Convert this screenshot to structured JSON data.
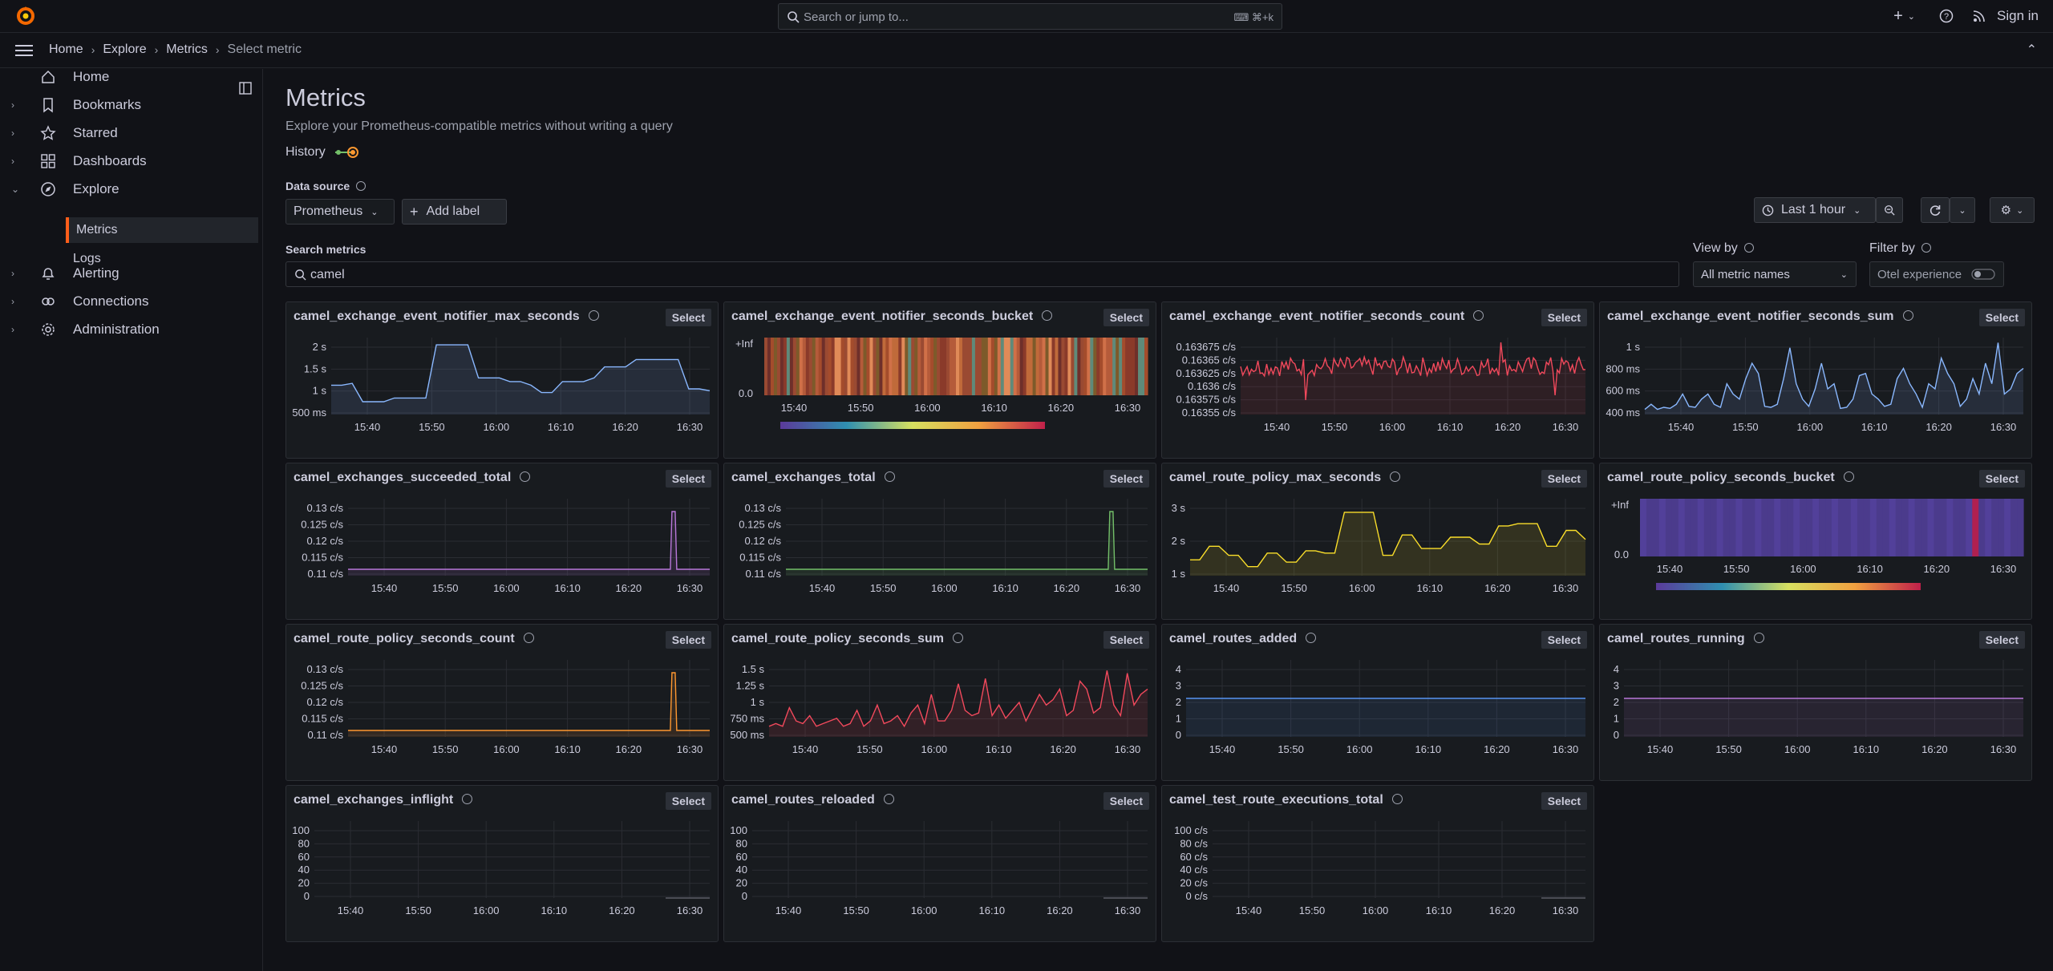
{
  "topbar": {
    "search_placeholder": "Search or jump to...",
    "shortcut": "⌨ ⌘+k",
    "sign_in": "Sign in"
  },
  "breadcrumbs": [
    "Home",
    "Explore",
    "Metrics",
    "Select metric"
  ],
  "nav": [
    {
      "label": "Home",
      "icon": "home-icon",
      "chev": false
    },
    {
      "label": "Bookmarks",
      "icon": "bookmark-icon",
      "chev": true
    },
    {
      "label": "Starred",
      "icon": "star-icon",
      "chev": true
    },
    {
      "label": "Dashboards",
      "icon": "apps-icon",
      "chev": true
    },
    {
      "label": "Explore",
      "icon": "compass-icon",
      "chev": true,
      "open": true
    },
    {
      "label": "Alerting",
      "icon": "bell-icon",
      "chev": true
    },
    {
      "label": "Connections",
      "icon": "link-icon",
      "chev": true
    },
    {
      "label": "Administration",
      "icon": "cog-icon",
      "chev": true
    }
  ],
  "subnav": [
    {
      "label": "Metrics",
      "active": true
    },
    {
      "label": "Logs",
      "active": false
    }
  ],
  "page": {
    "title": "Metrics",
    "subtitle": "Explore your Prometheus-compatible metrics without writing a query",
    "history_label": "History",
    "datasource_label": "Data source",
    "datasource_value": "Prometheus",
    "add_label": "Add label",
    "time_range": "Last 1 hour",
    "search_label": "Search metrics",
    "search_value": "camel",
    "view_by_label": "View by",
    "view_by_value": "All metric names",
    "filter_by_label": "Filter by",
    "otel_label": "Otel experience",
    "select_label": "Select"
  },
  "colors": {
    "accent": "#ff5e1a",
    "blue": "#8ab8ff",
    "red": "#f2495c",
    "purple": "#b877d9",
    "green": "#73bf69",
    "yellow": "#fade2a",
    "orange": "#ff9830"
  },
  "chart_data": [
    {
      "name": "camel_exchange_event_notifier_max_seconds",
      "type": "area",
      "color": "#8ab8ff",
      "yticks": [
        "2 s",
        "1.5 s",
        "1 s",
        "500 ms"
      ],
      "ymin": 0.2,
      "ymax": 2.3,
      "y": [
        1.0,
        1.0,
        1.05,
        0.55,
        0.55,
        0.55,
        0.65,
        0.65,
        0.65,
        0.65,
        2.1,
        2.1,
        2.1,
        2.1,
        1.2,
        1.2,
        1.2,
        1.1,
        1.1,
        1.0,
        0.8,
        0.8,
        1.1,
        1.1,
        1.1,
        1.2,
        1.5,
        1.5,
        1.5,
        1.7,
        1.7,
        1.7,
        1.7,
        1.7,
        0.9,
        0.9,
        0.85
      ]
    },
    {
      "name": "camel_exchange_event_notifier_seconds_bucket",
      "type": "heatmap",
      "yticks": [
        "+Inf",
        "0.0"
      ],
      "legend_min": "0.000",
      "legend_max": "0.001"
    },
    {
      "name": "camel_exchange_event_notifier_seconds_count",
      "type": "line",
      "color": "#f2495c",
      "yticks": [
        "0.163675 c/s",
        "0.16365 c/s",
        "0.163625 c/s",
        "0.1636 c/s",
        "0.163575 c/s",
        "0.16355 c/s"
      ],
      "ymin": 0.16353,
      "ymax": 0.16369,
      "y": "noise"
    },
    {
      "name": "camel_exchange_event_notifier_seconds_sum",
      "type": "area",
      "color": "#8ab8ff",
      "yticks": [
        "1 s",
        "800 ms",
        "600 ms",
        "400 ms"
      ],
      "ymin": 0.3,
      "ymax": 1.05,
      "y": [
        0.35,
        0.4,
        0.35,
        0.37,
        0.36,
        0.4,
        0.5,
        0.38,
        0.37,
        0.45,
        0.5,
        0.4,
        0.37,
        0.6,
        0.5,
        0.45,
        0.65,
        0.8,
        0.7,
        0.38,
        0.37,
        0.4,
        0.65,
        0.95,
        0.6,
        0.45,
        0.38,
        0.55,
        0.8,
        0.55,
        0.6,
        0.36,
        0.37,
        0.45,
        0.68,
        0.7,
        0.5,
        0.45,
        0.38,
        0.4,
        0.65,
        0.75,
        0.6,
        0.5,
        0.37,
        0.6,
        0.55,
        0.85,
        0.7,
        0.6,
        0.38,
        0.45,
        0.65,
        0.5,
        0.8,
        0.6,
        1.0,
        0.5,
        0.55,
        0.7,
        0.75
      ]
    },
    {
      "name": "camel_exchanges_succeeded_total",
      "type": "line",
      "color": "#b877d9",
      "yticks": [
        "0.13 c/s",
        "0.125 c/s",
        "0.12 c/s",
        "0.115 c/s",
        "0.11 c/s"
      ],
      "ymin": 0.108,
      "ymax": 0.132,
      "spike": 0.128
    },
    {
      "name": "camel_exchanges_total",
      "type": "line",
      "color": "#73bf69",
      "yticks": [
        "0.13 c/s",
        "0.125 c/s",
        "0.12 c/s",
        "0.115 c/s",
        "0.11 c/s"
      ],
      "ymin": 0.108,
      "ymax": 0.132,
      "spike": 0.128
    },
    {
      "name": "camel_route_policy_max_seconds",
      "type": "area",
      "color": "#fade2a",
      "yticks": [
        "3 s",
        "2 s",
        "1 s"
      ],
      "ymin": 0.2,
      "ymax": 3.6,
      "y": [
        0.9,
        0.9,
        1.5,
        1.5,
        1.1,
        1.1,
        0.6,
        0.6,
        1.2,
        1.2,
        0.8,
        0.8,
        1.3,
        1.3,
        1.2,
        1.2,
        3.0,
        3.0,
        3.0,
        3.0,
        1.1,
        1.1,
        2.0,
        2.0,
        1.4,
        1.4,
        1.4,
        1.9,
        1.9,
        1.9,
        1.6,
        1.6,
        2.4,
        2.4,
        2.5,
        2.5,
        2.5,
        1.5,
        1.5,
        2.2,
        2.2,
        1.8
      ]
    },
    {
      "name": "camel_route_policy_seconds_bucket",
      "type": "heatmap_purple",
      "yticks": [
        "+Inf",
        "0.0"
      ],
      "legend_min": "0.000",
      "legend_max": "0.000"
    },
    {
      "name": "camel_route_policy_seconds_count",
      "type": "line",
      "color": "#ff9830",
      "yticks": [
        "0.13 c/s",
        "0.125 c/s",
        "0.12 c/s",
        "0.115 c/s",
        "0.11 c/s"
      ],
      "ymin": 0.108,
      "ymax": 0.132,
      "spike": 0.128
    },
    {
      "name": "camel_route_policy_seconds_sum",
      "type": "area",
      "color": "#f2495c",
      "yticks": [
        "1.5 s",
        "1.25 s",
        "1 s",
        "750 ms",
        "500 ms"
      ],
      "ymin": 0.3,
      "ymax": 1.75,
      "y": [
        0.5,
        0.55,
        0.5,
        0.85,
        0.6,
        0.55,
        0.7,
        0.5,
        0.55,
        0.6,
        0.65,
        0.5,
        0.55,
        0.8,
        0.5,
        0.6,
        0.9,
        0.55,
        0.6,
        0.7,
        0.5,
        0.75,
        0.9,
        0.55,
        1.1,
        0.6,
        0.6,
        0.8,
        1.3,
        0.8,
        0.7,
        0.75,
        1.4,
        0.7,
        0.9,
        0.65,
        0.8,
        0.95,
        0.6,
        0.85,
        1.1,
        0.9,
        1.0,
        1.2,
        0.7,
        0.8,
        1.35,
        1.2,
        0.75,
        0.85,
        1.55,
        0.9,
        0.7,
        1.5,
        0.9,
        1.1,
        1.2
      ]
    },
    {
      "name": "camel_routes_added",
      "type": "line",
      "color": "#5794f2",
      "yticks": [
        "4",
        "3",
        "2",
        "1",
        "0"
      ],
      "ymin": 0,
      "ymax": 4,
      "const": 2
    },
    {
      "name": "camel_routes_running",
      "type": "line",
      "color": "#b877d9",
      "yticks": [
        "4",
        "3",
        "2",
        "1",
        "0"
      ],
      "ymin": 0,
      "ymax": 4,
      "const": 2
    },
    {
      "name": "camel_exchanges_inflight",
      "type": "empty",
      "yticks": [
        "100",
        "80",
        "60",
        "40",
        "20",
        "0"
      ]
    },
    {
      "name": "camel_routes_reloaded",
      "type": "empty",
      "yticks": [
        "100",
        "80",
        "60",
        "40",
        "20",
        "0"
      ]
    },
    {
      "name": "camel_test_route_executions_total",
      "type": "empty",
      "yticks": [
        "100 c/s",
        "80 c/s",
        "60 c/s",
        "40 c/s",
        "20 c/s",
        "0 c/s"
      ]
    }
  ],
  "xticks": [
    "15:40",
    "15:50",
    "16:00",
    "16:10",
    "16:20",
    "16:30"
  ]
}
